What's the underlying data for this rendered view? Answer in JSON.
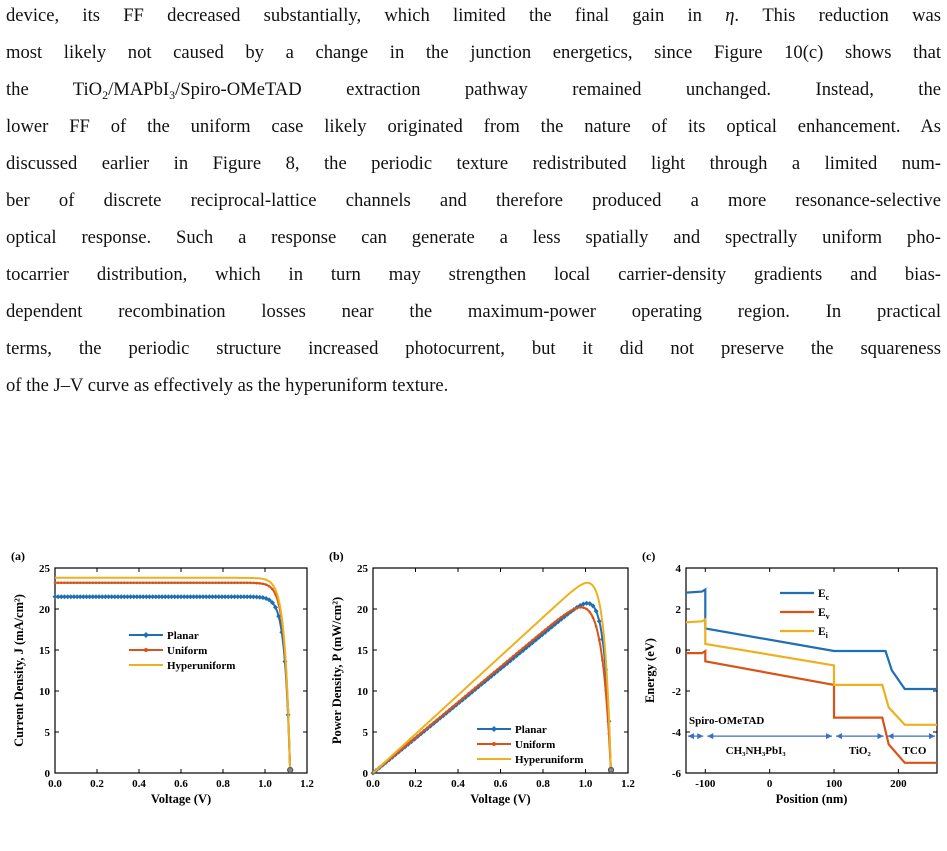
{
  "paragraph": {
    "l1a": "device, its FF decreased substantially, which limited the final gain in ",
    "eta": "η",
    "l1b": ". This reduction was",
    "l2": "most likely not caused by a change in the junction energetics, since Figure 10(c) shows that",
    "l3a": "the TiO",
    "l3s1": "2",
    "l3b": "/MAPbI",
    "l3s2": "3",
    "l3c": "/Spiro-OMeTAD extraction pathway remained unchanged. Instead, the",
    "l4": "lower FF of the uniform case likely originated from the nature of its optical enhancement. As",
    "l5": "discussed earlier in Figure 8, the periodic texture redistributed light through a limited num-",
    "l6": "ber of discrete reciprocal-lattice channels and therefore produced a more resonance-selective",
    "l7": "optical response. Such a response can generate a less spatially and spectrally uniform pho-",
    "l8": "tocarrier distribution, which in turn may strengthen local carrier-density gradients and bias-",
    "l9": "dependent recombination losses near the maximum-power operating region. In practical",
    "l10": "terms, the periodic structure increased photocurrent, but it did not preserve the squareness",
    "l11": "of the J–V curve as effectively as the hyperuniform texture."
  },
  "colors": {
    "planar": "#1f6fb4",
    "uniform": "#d95319",
    "hyperuniform": "#edb120"
  },
  "chart_data": [
    {
      "type": "line",
      "panel_label": "(a)",
      "xlabel": "Voltage (V)",
      "ylabel": "Current Density, J (mA/cm²)",
      "xlim": [
        0,
        1.2
      ],
      "ylim": [
        0,
        25
      ],
      "xticks": [
        "0.0",
        "0.2",
        "0.4",
        "0.6",
        "0.8",
        "1.0",
        "1.2"
      ],
      "yticks": [
        "0",
        "5",
        "10",
        "15",
        "20",
        "25"
      ],
      "legend_position": "center",
      "series": [
        {
          "name": "Planar",
          "jsc": 21.5,
          "voc": 1.12
        },
        {
          "name": "Uniform",
          "jsc": 23.2,
          "voc": 1.12
        },
        {
          "name": "Hyperuniform",
          "jsc": 23.8,
          "voc": 1.12
        }
      ]
    },
    {
      "type": "line",
      "panel_label": "(b)",
      "xlabel": "Voltage (V)",
      "ylabel": "Power Density, P (mW/cm²)",
      "xlim": [
        0,
        1.2
      ],
      "ylim": [
        0,
        25
      ],
      "xticks": [
        "0.0",
        "0.2",
        "0.4",
        "0.6",
        "0.8",
        "1.0",
        "1.2"
      ],
      "yticks": [
        "0",
        "5",
        "10",
        "15",
        "20",
        "25"
      ],
      "legend_position": "bottom-right",
      "series": [
        {
          "name": "Planar",
          "pmax": 21.0,
          "vmp": 1.02
        },
        {
          "name": "Uniform",
          "pmax": 21.6,
          "vmp": 1.0
        },
        {
          "name": "Hyperuniform",
          "pmax": 23.6,
          "vmp": 1.04
        }
      ]
    },
    {
      "type": "line",
      "panel_label": "(c)",
      "xlabel": "Position (nm)",
      "ylabel": "Energy (eV)",
      "xlim": [
        -130,
        260
      ],
      "ylim": [
        -6,
        4
      ],
      "xticks": [
        "-100",
        "0",
        "100",
        "200"
      ],
      "yticks": [
        "-6",
        "-4",
        "-2",
        "0",
        "2",
        "4"
      ],
      "legend_position": "top-center",
      "region_labels": [
        "Spiro-OMeTAD",
        "CH₃NH₃PbI₃",
        "TiO₂",
        "TCO"
      ],
      "series": [
        {
          "name": "Ec",
          "x": [
            -130,
            -105,
            -100,
            -100,
            100,
            102,
            140,
            180,
            190,
            210,
            260
          ],
          "y": [
            2.8,
            2.85,
            2.95,
            1.05,
            -0.05,
            -0.05,
            -0.05,
            -0.05,
            -1.0,
            -1.9,
            -1.9
          ]
        },
        {
          "name": "Ev",
          "x": [
            -130,
            -105,
            -100,
            -100,
            100,
            100,
            175,
            185,
            210,
            260
          ],
          "y": [
            -0.15,
            -0.15,
            -0.05,
            -0.55,
            -1.7,
            -3.3,
            -3.3,
            -4.6,
            -5.5,
            -5.5
          ]
        },
        {
          "name": "Ei",
          "x": [
            -130,
            -105,
            -100,
            -100,
            100,
            100,
            175,
            185,
            210,
            260
          ],
          "y": [
            1.35,
            1.4,
            1.5,
            0.3,
            -0.75,
            -1.7,
            -1.7,
            -2.8,
            -3.65,
            -3.65
          ]
        }
      ]
    }
  ]
}
